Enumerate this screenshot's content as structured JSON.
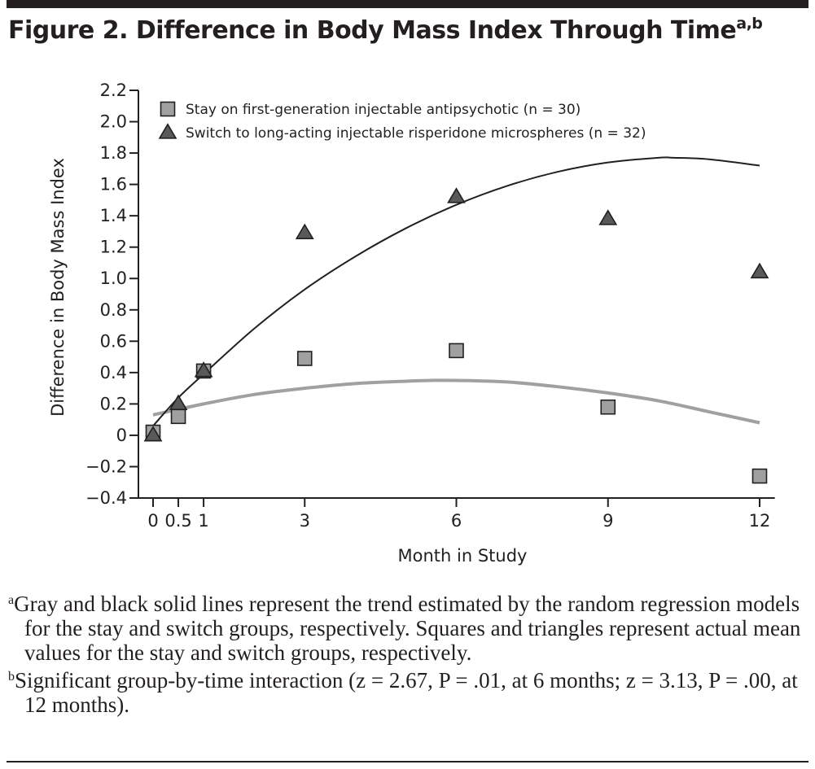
{
  "figure": {
    "title": "Figure 2. Difference in Body Mass Index Through Time",
    "title_superscript": "a,b"
  },
  "notes": [
    {
      "marker": "a",
      "text": "Gray and black solid lines represent the trend estimated by the random regression models for the stay and switch groups, respectively. Squares and triangles represent actual mean values for the stay and switch groups, respectively."
    },
    {
      "marker": "b",
      "text": "Significant group-by-time interaction (z = 2.67, P = .01, at 6 months; z = 3.13, P = .00, at 12 months)."
    }
  ],
  "chart_data": {
    "type": "scatter",
    "title": "Difference in Body Mass Index Through Time",
    "xlabel": "Month in Study",
    "ylabel": "Difference in Body Mass Index",
    "xlim": [
      -0.4,
      12.3
    ],
    "ylim": [
      -0.4,
      2.2
    ],
    "x_ticks": [
      0,
      0.5,
      1,
      3,
      6,
      9,
      12
    ],
    "x_tick_labels": [
      "0",
      "0.5",
      "1",
      "3",
      "6",
      "9",
      "12"
    ],
    "y_ticks": [
      -0.4,
      -0.2,
      0,
      0.2,
      0.4,
      0.6,
      0.8,
      1.0,
      1.2,
      1.4,
      1.6,
      1.8,
      2.0,
      2.2
    ],
    "y_tick_labels": [
      "−0.4",
      "−0.2",
      "0",
      "0.2",
      "0.4",
      "0.6",
      "0.8",
      "1.0",
      "1.2",
      "1.4",
      "1.6",
      "1.8",
      "2.0",
      "2.2"
    ],
    "grid": false,
    "legend_position": "top-left",
    "series": [
      {
        "name": "Stay on first-generation injectable antipsychotic (n = 30)",
        "marker": "square",
        "color": "#a0a0a0",
        "x": [
          0,
          0.5,
          1,
          3,
          6,
          9,
          12
        ],
        "values": [
          0.02,
          0.12,
          0.41,
          0.49,
          0.54,
          0.18,
          -0.26
        ],
        "trend": {
          "color": "#a0a0a0",
          "x": [
            0,
            1,
            2,
            3,
            4,
            5,
            5.5,
            6,
            7,
            8,
            9,
            10,
            11,
            12
          ],
          "values": [
            0.13,
            0.2,
            0.26,
            0.3,
            0.33,
            0.345,
            0.35,
            0.35,
            0.34,
            0.31,
            0.27,
            0.22,
            0.15,
            0.08
          ]
        }
      },
      {
        "name": "Switch to long-acting injectable risperidone microspheres (n = 32)",
        "marker": "triangle",
        "color": "#595959",
        "x": [
          0,
          0.5,
          1,
          3,
          6,
          9,
          12
        ],
        "values": [
          0.0,
          0.2,
          0.41,
          1.29,
          1.52,
          1.38,
          1.04
        ],
        "trend": {
          "color": "#231f20",
          "x": [
            0,
            0.5,
            1,
            2,
            3,
            4,
            5,
            6,
            7,
            8,
            9,
            10,
            10.3,
            11,
            12
          ],
          "values": [
            0.06,
            0.24,
            0.39,
            0.68,
            0.93,
            1.14,
            1.32,
            1.47,
            1.59,
            1.68,
            1.74,
            1.77,
            1.77,
            1.76,
            1.72
          ]
        }
      }
    ]
  }
}
